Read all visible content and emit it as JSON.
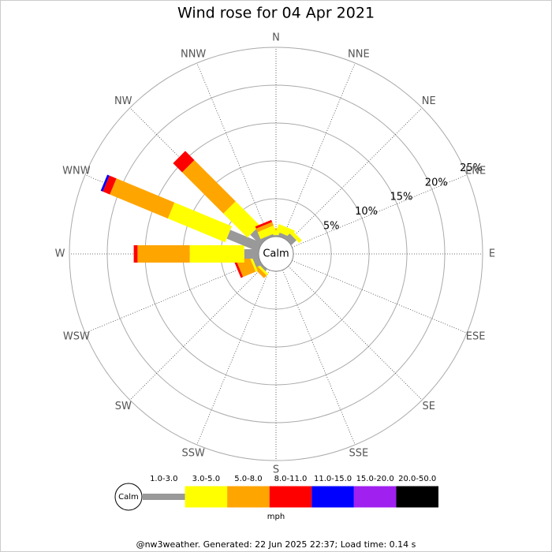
{
  "chart_data": {
    "type": "windrose",
    "title": "Wind rose for 04 Apr 2021",
    "calm_label": "Calm",
    "categories": [
      "N",
      "NNE",
      "NE",
      "ENE",
      "E",
      "ESE",
      "SE",
      "SSE",
      "S",
      "SSW",
      "SW",
      "WSW",
      "W",
      "WNW",
      "NW",
      "NNW"
    ],
    "series": [
      {
        "name": "1.0-3.0",
        "color": "#999999",
        "values": [
          0.2,
          0.5,
          0.9,
          0,
          0,
          0,
          0,
          0,
          0,
          0,
          0.3,
          0.8,
          1.9,
          4.5,
          1.9,
          0.3
        ]
      },
      {
        "name": "3.0-5.0",
        "color": "#ffff00",
        "values": [
          0.6,
          1.0,
          0.5,
          0,
          0,
          0,
          0,
          0,
          0,
          0,
          0.3,
          0.3,
          7.2,
          8.2,
          4.5,
          1.0
        ]
      },
      {
        "name": "5.0-8.0",
        "color": "#ffa500",
        "values": [
          0.3,
          0,
          0,
          0,
          0,
          0,
          0,
          0,
          0,
          0,
          0.5,
          1.8,
          6.9,
          8.3,
          7.7,
          0.5
        ]
      },
      {
        "name": "8.0-11.0",
        "color": "#ff0000",
        "values": [
          0,
          0,
          0,
          0,
          0,
          0,
          0,
          0,
          0,
          0,
          0,
          0.3,
          0.5,
          1.0,
          1.7,
          0.3
        ]
      },
      {
        "name": "11.0-15.0",
        "color": "#0000ff",
        "values": [
          0,
          0,
          0,
          0,
          0,
          0,
          0,
          0,
          0,
          0,
          0,
          0,
          0,
          0.3,
          0,
          0
        ]
      },
      {
        "name": "15.0-20.0",
        "color": "#a020f0",
        "values": [
          0,
          0,
          0,
          0,
          0,
          0,
          0,
          0,
          0,
          0,
          0,
          0,
          0,
          0,
          0,
          0
        ]
      },
      {
        "name": "20.0-50.0",
        "color": "#000000",
        "values": [
          0,
          0,
          0,
          0,
          0,
          0,
          0,
          0,
          0,
          0,
          0,
          0,
          0,
          0,
          0,
          0
        ]
      }
    ],
    "rlim": [
      0,
      25
    ],
    "rticks": [
      {
        "value": 5,
        "label": "5%"
      },
      {
        "value": 10,
        "label": "10%"
      },
      {
        "value": 15,
        "label": "15%"
      },
      {
        "value": 20,
        "label": "20%"
      },
      {
        "value": 25,
        "label": "25%"
      }
    ],
    "legend_unit": "mph",
    "footer": "@nw3weather. Generated: 22 Jun 2025 22:37; Load time: 0.14 s"
  }
}
